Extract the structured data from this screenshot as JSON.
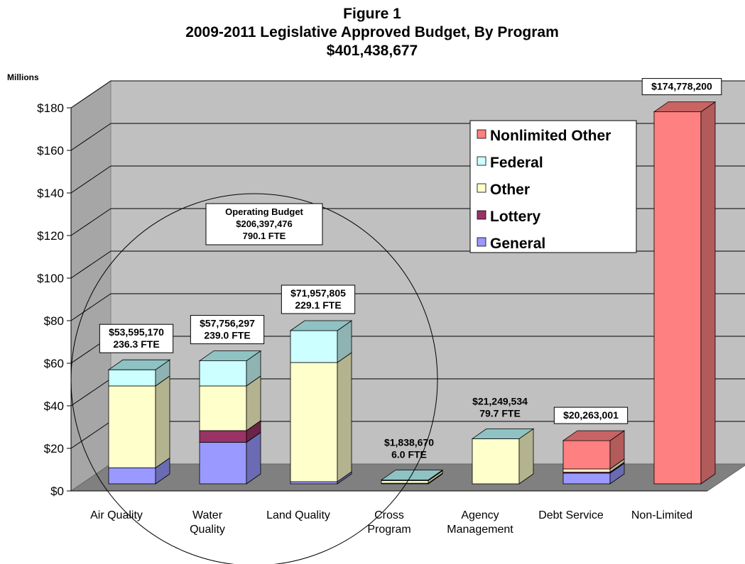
{
  "chart_data": {
    "type": "bar",
    "stacked": true,
    "three_d": true,
    "title": [
      "Figure 1",
      "2009-2011 Legislative Approved Budget, By Program",
      "$401,438,677"
    ],
    "ylabel": "Millions",
    "ylim": [
      0,
      180
    ],
    "yticks": [
      "$0",
      "$20",
      "$40",
      "$60",
      "$80",
      "$100",
      "$120",
      "$140",
      "$160",
      "$180"
    ],
    "grid": true,
    "categories": [
      [
        "Air Quality"
      ],
      [
        "Water",
        "Quality"
      ],
      [
        "Land Quality"
      ],
      [
        "Cross",
        "Program"
      ],
      [
        "Agency",
        "Management"
      ],
      [
        "Debt Service"
      ],
      [
        "Non-Limited"
      ]
    ],
    "series": [
      {
        "name": "General",
        "color": "#9999ff",
        "side_color": "#6b6bb3",
        "values": [
          7.5,
          19.5,
          1.0,
          0.3,
          0.0,
          5.0,
          0.0
        ]
      },
      {
        "name": "Lottery",
        "color": "#993366",
        "side_color": "#6b2447",
        "values": [
          0.0,
          5.5,
          0.0,
          0.0,
          0.0,
          0.5,
          0.0
        ]
      },
      {
        "name": "Other",
        "color": "#ffffcc",
        "side_color": "#b3b38f",
        "values": [
          38.5,
          21.0,
          56.0,
          1.2,
          21.2,
          1.5,
          0.0
        ]
      },
      {
        "name": "Federal",
        "color": "#ccffff",
        "side_color": "#8fb3b3",
        "values": [
          7.6,
          11.8,
          15.0,
          0.3,
          0.0,
          0.0,
          0.0
        ]
      },
      {
        "name": "Nonlimited Other",
        "color": "#ff8080",
        "side_color": "#b35a5a",
        "values": [
          0.0,
          0.0,
          0.0,
          0.0,
          0.0,
          13.3,
          174.8
        ]
      }
    ],
    "legend": {
      "placement": "top-right",
      "order": [
        "Nonlimited Other",
        "Federal",
        "Other",
        "Lottery",
        "General"
      ]
    },
    "data_labels": [
      [
        "$53,595,170",
        "236.3 FTE"
      ],
      [
        "$57,756,297",
        "239.0 FTE"
      ],
      [
        "$71,957,805",
        "229.1 FTE"
      ],
      [
        "$1,838,670",
        "6.0 FTE"
      ],
      [
        "$21,249,534",
        "79.7 FTE"
      ],
      [
        "$20,263,001"
      ],
      [
        "$174,778,200"
      ]
    ],
    "data_label_boxed": [
      true,
      true,
      true,
      false,
      false,
      true,
      true
    ],
    "annotation": {
      "lines": [
        "Operating Budget",
        "$206,397,476",
        "790.1 FTE"
      ],
      "encloses": [
        "Air Quality",
        "Water Quality",
        "Land Quality",
        "Cross Program",
        "Agency Management"
      ]
    }
  }
}
